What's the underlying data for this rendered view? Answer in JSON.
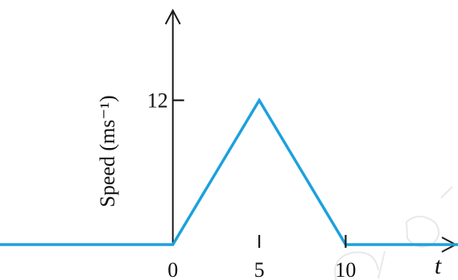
{
  "chart_data": {
    "type": "line",
    "ylabel": "Speed (ms⁻¹)",
    "xlabel": "t",
    "x_ticks": [
      {
        "value": 0,
        "label": "0"
      },
      {
        "value": 5,
        "label": "5"
      },
      {
        "value": 10,
        "label": "10"
      }
    ],
    "y_ticks": [
      {
        "value": 12,
        "label": "12"
      }
    ],
    "xlim": [
      -10,
      16.5
    ],
    "ylim": [
      0,
      19
    ],
    "grid": false,
    "series": [
      {
        "color": "#1ba1dd",
        "points": [
          {
            "x": -10,
            "y": 0
          },
          {
            "x": 0,
            "y": 0
          },
          {
            "x": 5,
            "y": 12
          },
          {
            "x": 10,
            "y": 0
          },
          {
            "x": 16.5,
            "y": 0
          }
        ]
      }
    ]
  },
  "watermark": {
    "color": "#d9d9d9"
  }
}
